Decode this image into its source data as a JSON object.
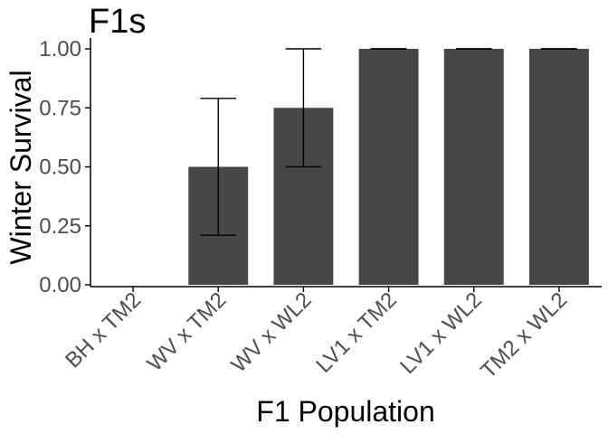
{
  "chart_data": {
    "type": "bar",
    "title": "F1s",
    "xlabel": "F1 Population",
    "ylabel": "Winter Survival",
    "categories": [
      "BH x TM2",
      "WV x TM2",
      "WV x WL2",
      "LV1 x TM2",
      "LV1 x WL2",
      "TM2 x WL2"
    ],
    "values": [
      0,
      0.5,
      0.75,
      1.0,
      1.0,
      1.0
    ],
    "error_low": [
      0,
      0.21,
      0.5,
      1.0,
      1.0,
      1.0
    ],
    "error_high": [
      0,
      0.79,
      1.0,
      1.0,
      1.0,
      1.0
    ],
    "ylim": [
      0,
      1.0
    ],
    "yticks": [
      "0.00",
      "0.25",
      "0.50",
      "0.75",
      "1.00"
    ],
    "grid": false,
    "bar_color": "#474747",
    "axis_color": "#000000",
    "tick_label_color": "#4d4d4d"
  }
}
